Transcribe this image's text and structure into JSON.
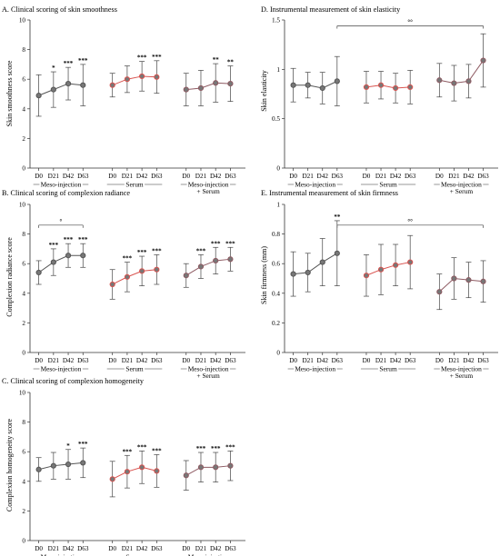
{
  "figure": {
    "groups": [
      "Meso-injection",
      "Serum",
      "Meso-injection",
      "+ Serum"
    ],
    "timepoints": [
      "D0",
      "D21",
      "D42",
      "D63"
    ],
    "colors": {
      "meso": "#555555",
      "serum": "#d9534f",
      "combo": "#8e5a62",
      "marker_fill": "#777777"
    }
  },
  "chart_data": [
    {
      "id": "A",
      "type": "line",
      "title": "A. Clinical scoring of skin smoothness",
      "ylabel": "Skin smoothness score",
      "ylim": [
        0,
        10
      ],
      "yticks": [
        "0",
        "2",
        "4",
        "6",
        "8",
        "10"
      ],
      "series": [
        {
          "group": "Meso-injection",
          "values": [
            4.9,
            5.3,
            5.7,
            5.6
          ],
          "err": [
            1.4,
            1.2,
            1.1,
            1.4
          ],
          "sig": [
            "",
            "*",
            "***",
            "***"
          ]
        },
        {
          "group": "Serum",
          "values": [
            5.6,
            6.0,
            6.2,
            6.15
          ],
          "err": [
            0.8,
            0.9,
            1.0,
            1.1
          ],
          "sig": [
            "",
            "",
            "***",
            "***"
          ]
        },
        {
          "group": "Meso-injection + Serum",
          "values": [
            5.3,
            5.4,
            5.75,
            5.7
          ],
          "err": [
            1.1,
            1.2,
            1.3,
            1.2
          ],
          "sig": [
            "",
            "",
            "**",
            "**"
          ]
        }
      ],
      "bracket": null
    },
    {
      "id": "B",
      "type": "line",
      "title": "B. Clinical scoring of complexion radiance",
      "ylabel": "Complexion radiance score",
      "ylim": [
        0,
        10
      ],
      "yticks": [
        "0",
        "2",
        "4",
        "6",
        "8",
        "10"
      ],
      "series": [
        {
          "group": "Meso-injection",
          "values": [
            5.4,
            6.1,
            6.55,
            6.55
          ],
          "err": [
            0.8,
            0.9,
            0.8,
            0.8
          ],
          "sig": [
            "",
            "***",
            "***",
            "***"
          ]
        },
        {
          "group": "Serum",
          "values": [
            4.6,
            5.1,
            5.5,
            5.6
          ],
          "err": [
            1.0,
            1.0,
            1.0,
            1.0
          ],
          "sig": [
            "",
            "***",
            "***",
            "***"
          ]
        },
        {
          "group": "Meso-injection + Serum",
          "values": [
            5.2,
            5.8,
            6.2,
            6.3
          ],
          "err": [
            0.8,
            0.8,
            0.9,
            0.8
          ],
          "sig": [
            "",
            "***",
            "***",
            "***"
          ]
        }
      ],
      "bracket": {
        "from_group": 0,
        "from_tp": 0,
        "to_group": 0,
        "to_tp": 3,
        "y": 8.6,
        "label": "°"
      }
    },
    {
      "id": "C",
      "type": "line",
      "title": "C. Clinical scoring of complexion homogeneity",
      "ylabel": "Complexion homogeneity score",
      "ylim": [
        0,
        10
      ],
      "yticks": [
        "0",
        "2",
        "4",
        "6",
        "8",
        "10"
      ],
      "series": [
        {
          "group": "Meso-injection",
          "values": [
            4.8,
            5.05,
            5.15,
            5.25
          ],
          "err": [
            0.8,
            0.9,
            1.0,
            1.0
          ],
          "sig": [
            "",
            "",
            "*",
            "***"
          ]
        },
        {
          "group": "Serum",
          "values": [
            4.15,
            4.65,
            4.95,
            4.7
          ],
          "err": [
            1.2,
            1.1,
            1.1,
            1.1
          ],
          "sig": [
            "",
            "***",
            "***",
            "***"
          ]
        },
        {
          "group": "Meso-injection + Serum",
          "values": [
            4.4,
            4.95,
            4.95,
            5.05
          ],
          "err": [
            1.0,
            1.0,
            1.0,
            1.0
          ],
          "sig": [
            "",
            "***",
            "***",
            "***"
          ]
        }
      ],
      "bracket": null
    },
    {
      "id": "D",
      "type": "line",
      "title": "D. Instrumental measurement of skin elasticity",
      "ylabel": "Skin elasticity",
      "ylim": [
        0,
        1.5
      ],
      "yticks": [
        "0",
        "0.5",
        "1",
        "1.5"
      ],
      "series": [
        {
          "group": "Meso-injection",
          "values": [
            0.84,
            0.84,
            0.81,
            0.88
          ],
          "err": [
            0.17,
            0.13,
            0.16,
            0.25
          ],
          "sig": [
            "",
            "",
            "",
            ""
          ]
        },
        {
          "group": "Serum",
          "values": [
            0.82,
            0.84,
            0.81,
            0.82
          ],
          "err": [
            0.16,
            0.14,
            0.15,
            0.17
          ],
          "sig": [
            "",
            "",
            "",
            ""
          ]
        },
        {
          "group": "Meso-injection + Serum",
          "values": [
            0.89,
            0.86,
            0.88,
            1.09
          ],
          "err": [
            0.17,
            0.18,
            0.17,
            0.27
          ],
          "sig": [
            "",
            "",
            "",
            ""
          ]
        }
      ],
      "bracket": {
        "from_group": 0,
        "from_tp": 3,
        "to_group": 2,
        "to_tp": 3,
        "y": 1.44,
        "label": "°°"
      }
    },
    {
      "id": "E",
      "type": "line",
      "title": "E. Instrumental measurement of skin firmness",
      "ylabel": "Skin firmness (mm)",
      "ylim": [
        0,
        1
      ],
      "yticks": [
        "0",
        "0.2",
        "0.4",
        "0.6",
        "0.8",
        "1"
      ],
      "series": [
        {
          "group": "Meso-injection",
          "values": [
            0.53,
            0.54,
            0.61,
            0.67
          ],
          "err": [
            0.15,
            0.13,
            0.16,
            0.22
          ],
          "sig": [
            "",
            "",
            "",
            "**"
          ]
        },
        {
          "group": "Serum",
          "values": [
            0.52,
            0.56,
            0.59,
            0.61
          ],
          "err": [
            0.14,
            0.17,
            0.14,
            0.18
          ],
          "sig": [
            "",
            "",
            "",
            ""
          ]
        },
        {
          "group": "Meso-injection + Serum",
          "values": [
            0.41,
            0.5,
            0.49,
            0.48
          ],
          "err": [
            0.12,
            0.14,
            0.12,
            0.14
          ],
          "sig": [
            "",
            "",
            "",
            ""
          ]
        }
      ],
      "bracket": {
        "from_group": 0,
        "from_tp": 3,
        "to_group": 2,
        "to_tp": 3,
        "y": 0.86,
        "label": "°°"
      }
    }
  ]
}
